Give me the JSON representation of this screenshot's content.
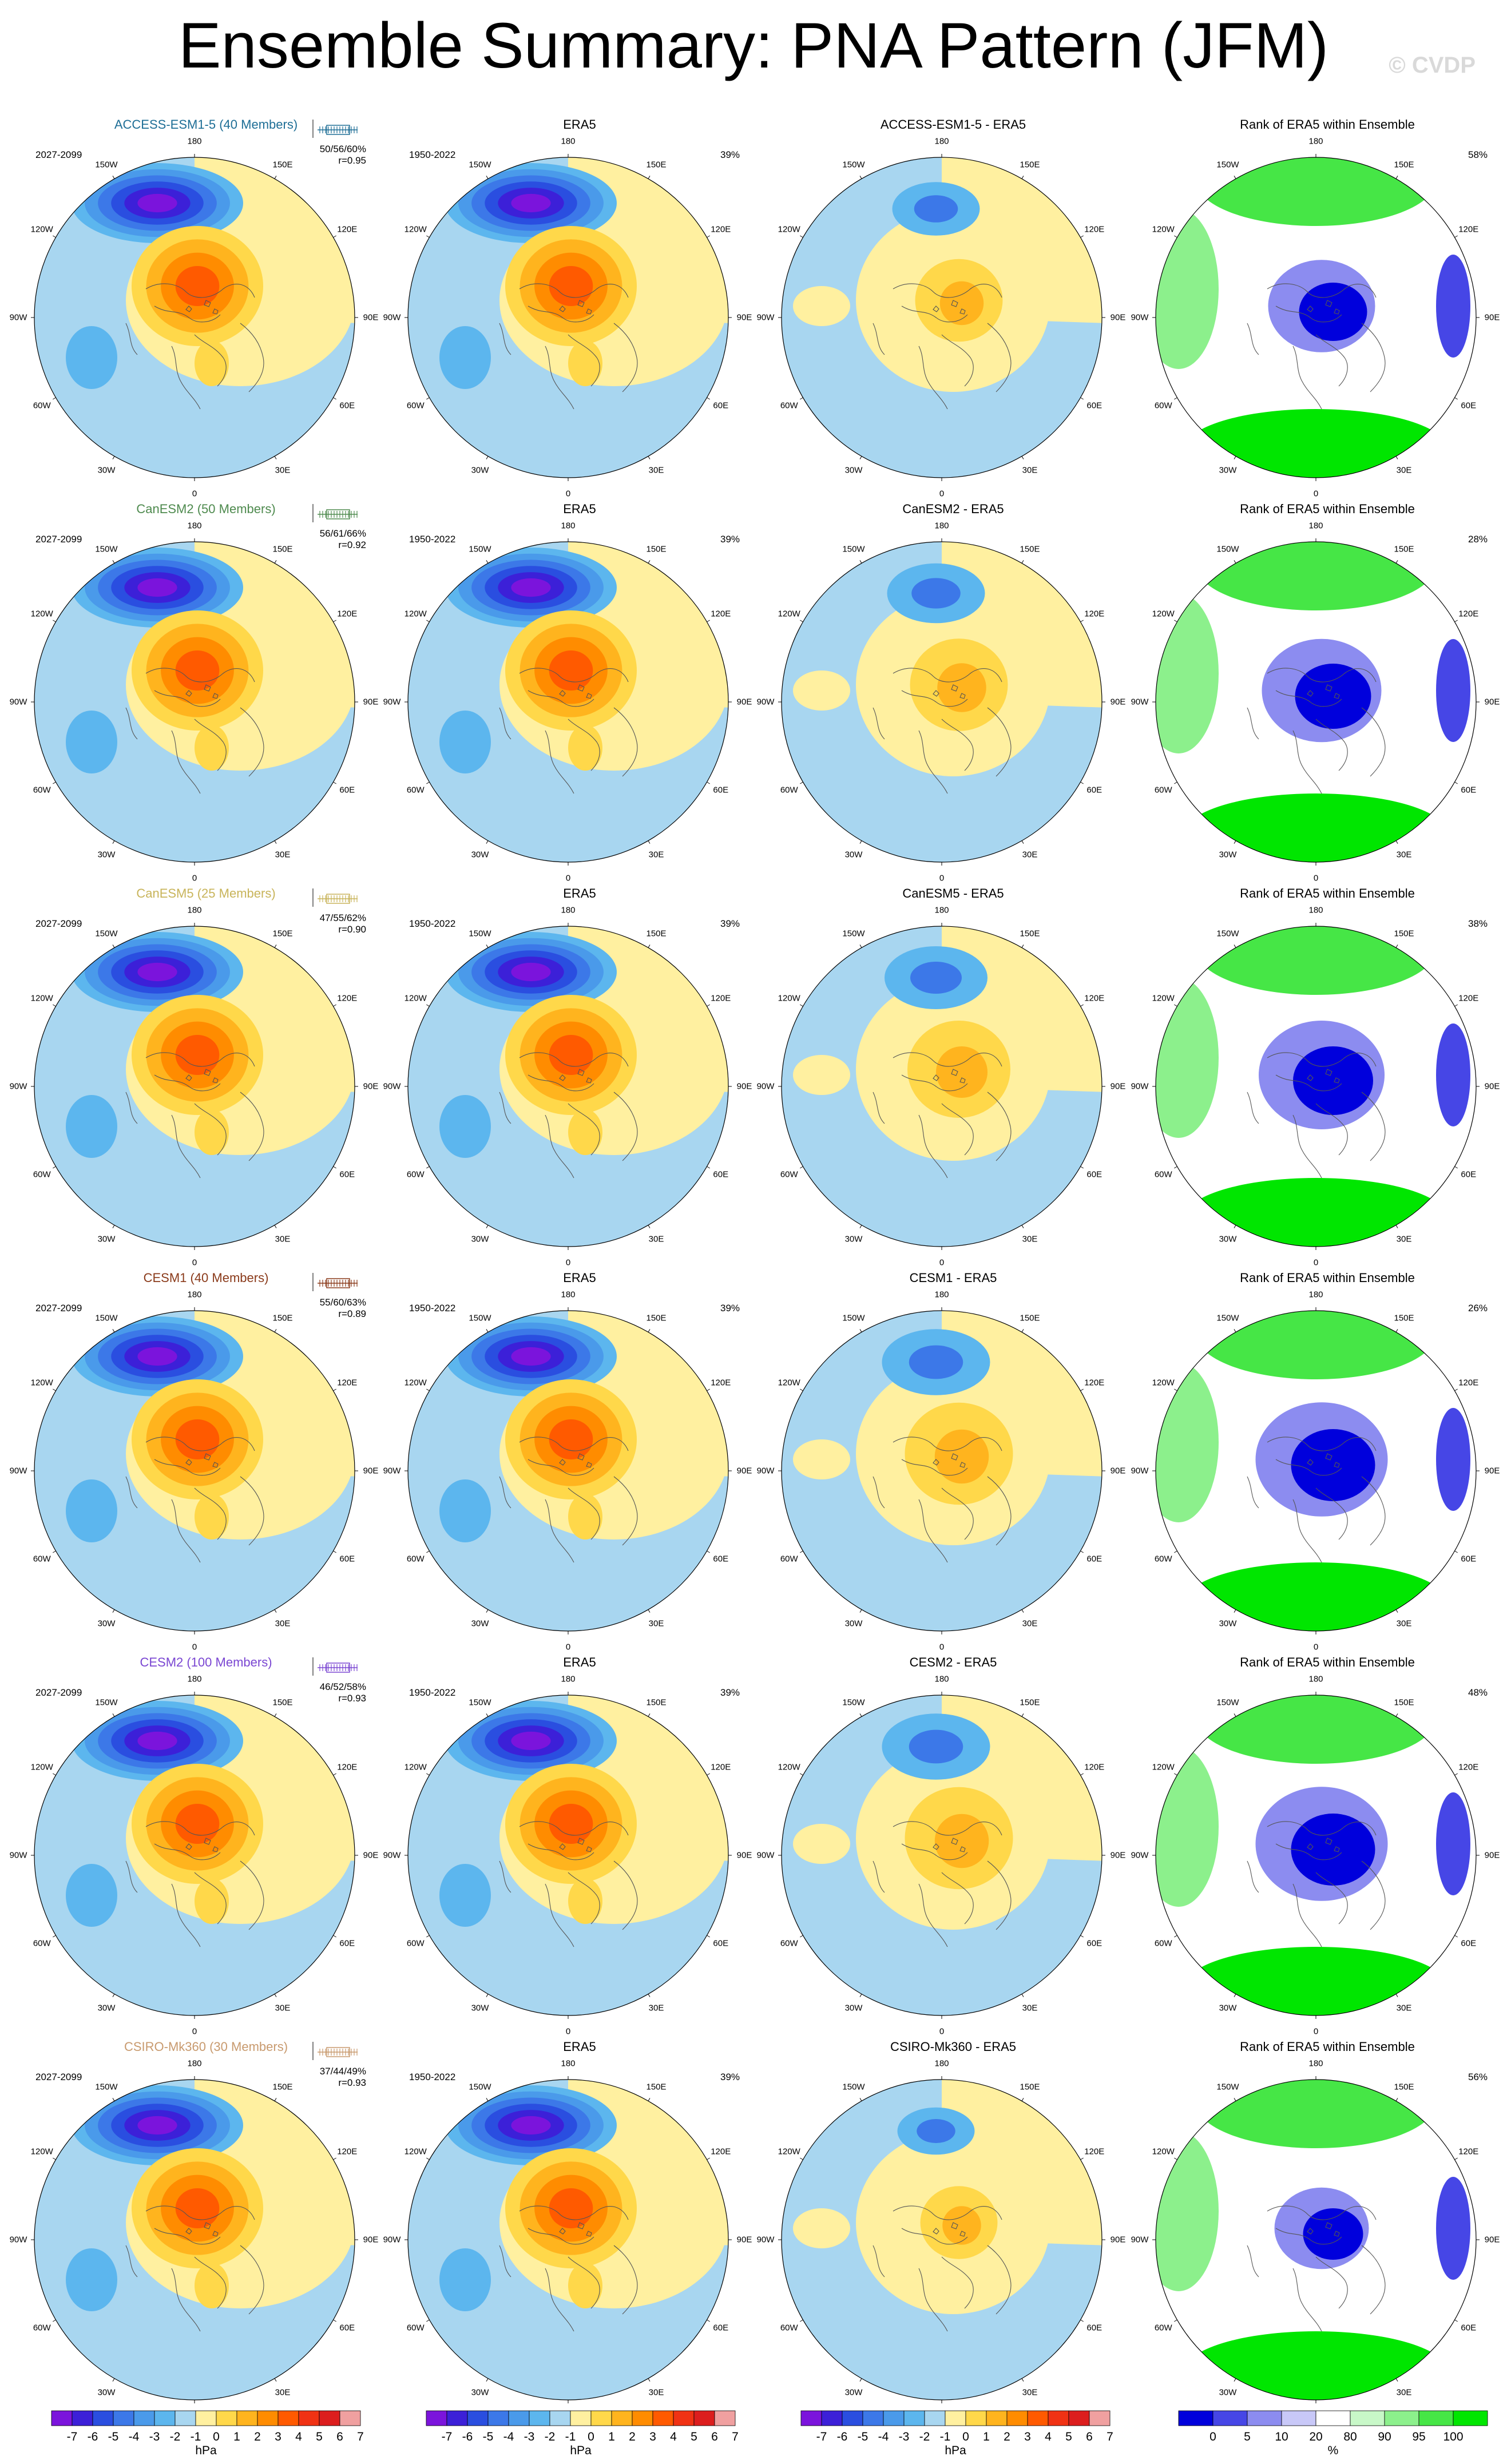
{
  "title": "Ensemble Summary: PNA Pattern (JFM)",
  "copyright": "© CVDP",
  "lon_labels": [
    "180",
    "150E",
    "120E",
    "90E",
    "60E",
    "30E",
    "0",
    "30W",
    "60W",
    "90W",
    "120W",
    "150W"
  ],
  "rows": [
    {
      "model": "ACCESS-ESM1-5 (40 Members)",
      "model_short": "ACCESS-ESM1-5",
      "color": "#1e6e96",
      "period": "2027-2099",
      "stats": "50/56/60%",
      "r": "r=0.95",
      "diff_title": "ACCESS-ESM1-5 - ERA5",
      "rank_pct": "58%",
      "strength": 0.85
    },
    {
      "model": "CanESM2 (50 Members)",
      "model_short": "CanESM2",
      "color": "#4e8a4e",
      "period": "2027-2099",
      "stats": "56/61/66%",
      "r": "r=0.92",
      "diff_title": "CanESM2 - ERA5",
      "rank_pct": "28%",
      "strength": 0.95
    },
    {
      "model": "CanESM5 (25 Members)",
      "model_short": "CanESM5",
      "color": "#c8b45a",
      "period": "2027-2099",
      "stats": "47/55/62%",
      "r": "r=0.90",
      "diff_title": "CanESM5 - ERA5",
      "rank_pct": "38%",
      "strength": 1.0
    },
    {
      "model": "CESM1 (40 Members)",
      "model_short": "CESM1",
      "color": "#8a3a1a",
      "period": "2027-2099",
      "stats": "55/60/63%",
      "r": "r=0.89",
      "diff_title": "CESM1 - ERA5",
      "rank_pct": "26%",
      "strength": 1.05
    },
    {
      "model": "CESM2 (100 Members)",
      "model_short": "CESM2",
      "color": "#7a46d2",
      "period": "2027-2099",
      "stats": "46/52/58%",
      "r": "r=0.93",
      "diff_title": "CESM2 - ERA5",
      "rank_pct": "48%",
      "strength": 1.05
    },
    {
      "model": "CSIRO-Mk360 (30 Members)",
      "model_short": "CSIRO-Mk360",
      "color": "#c89a6e",
      "period": "2027-2099",
      "stats": "37/44/49%",
      "r": "r=0.93",
      "diff_title": "CSIRO-Mk360 - ERA5",
      "rank_pct": "56%",
      "strength": 0.75
    }
  ],
  "obs": {
    "title": "ERA5",
    "period": "1950-2022",
    "pct": "39%"
  },
  "rank_title": "Rank of ERA5 within Ensemble",
  "colorbar_hpa": {
    "labels": [
      "-7",
      "-6",
      "-5",
      "-4",
      "-3",
      "-2",
      "-1",
      "0",
      "1",
      "2",
      "3",
      "4",
      "5",
      "6",
      "7"
    ],
    "colors": [
      "#7b14dc",
      "#3c20d8",
      "#2a4ee0",
      "#3c78e8",
      "#4a9aea",
      "#5cb6ee",
      "#a8d6f0",
      "#fff0a0",
      "#ffd84a",
      "#ffb41e",
      "#ff8c00",
      "#ff5a00",
      "#f03214",
      "#dc1e1e",
      "#f0a0a0"
    ],
    "unit": "hPa"
  },
  "colorbar_rank": {
    "labels": [
      "0",
      "5",
      "10",
      "20",
      "80",
      "90",
      "95",
      "100"
    ],
    "colors": [
      "#0000dc",
      "#4646e6",
      "#8c8cf0",
      "#c8c8f8",
      "#ffffff",
      "#c8f8c8",
      "#8cf08c",
      "#46e646",
      "#00e600"
    ],
    "unit": "%"
  }
}
